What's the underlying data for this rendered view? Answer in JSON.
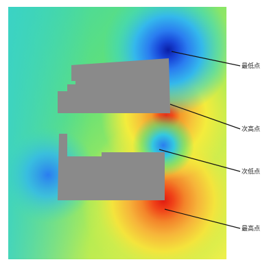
{
  "callouts": [
    {
      "id": "c1",
      "label": "最低点"
    },
    {
      "id": "c2",
      "label": "次高点"
    },
    {
      "id": "c3",
      "label": "次低点"
    },
    {
      "id": "c4",
      "label": "最高点"
    }
  ],
  "colors": {
    "low_extreme": "#0a1ea6",
    "low": "#2a7df0",
    "mid_cyan": "#2fd0e0",
    "mid_green": "#4fe07a",
    "mid_yellow": "#f4ec3c",
    "high_orange": "#f39a2a",
    "high_red": "#e82a14",
    "building_gray": "#8a8a8a",
    "leader_line": "#111111"
  }
}
